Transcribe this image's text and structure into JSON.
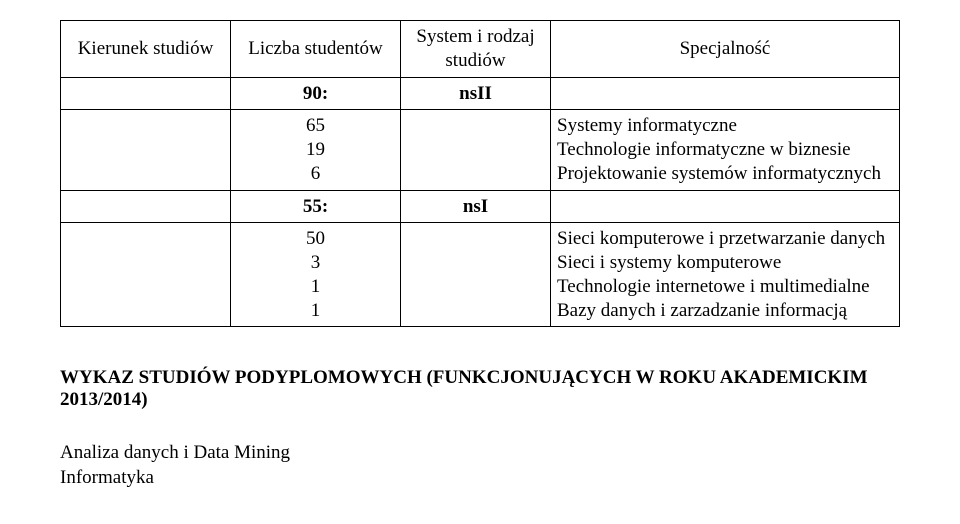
{
  "table": {
    "headers": {
      "col1": "Kierunek studiów",
      "col2": "Liczba studentów",
      "col3": "System i rodzaj studiów",
      "col4": "Specjalność"
    },
    "rows": [
      {
        "count_label": "90:",
        "system": "nsII",
        "count_bold": true
      },
      {
        "counts": [
          "65",
          "19",
          "6"
        ],
        "specs": [
          "Systemy informatyczne",
          "Technologie informatyczne w biznesie",
          "Projektowanie systemów informatycznych"
        ]
      },
      {
        "count_label": "55:",
        "system": "nsI",
        "count_bold": true
      },
      {
        "counts": [
          "50",
          "",
          "3",
          "1",
          "1"
        ],
        "specs": [
          "Sieci komputerowe i przetwarzanie danych",
          "Sieci i systemy komputerowe",
          "Technologie internetowe i multimedialne",
          "Bazy danych i zarzadzanie informacją"
        ]
      }
    ]
  },
  "heading": "WYKAZ STUDIÓW PODYPLOMOWYCH (FUNKCJONUJĄCYCH W ROKU AKADEMICKIM 2013/2014)",
  "body": {
    "line1": "Analiza danych i Data Mining",
    "line2": "Informatyka"
  }
}
